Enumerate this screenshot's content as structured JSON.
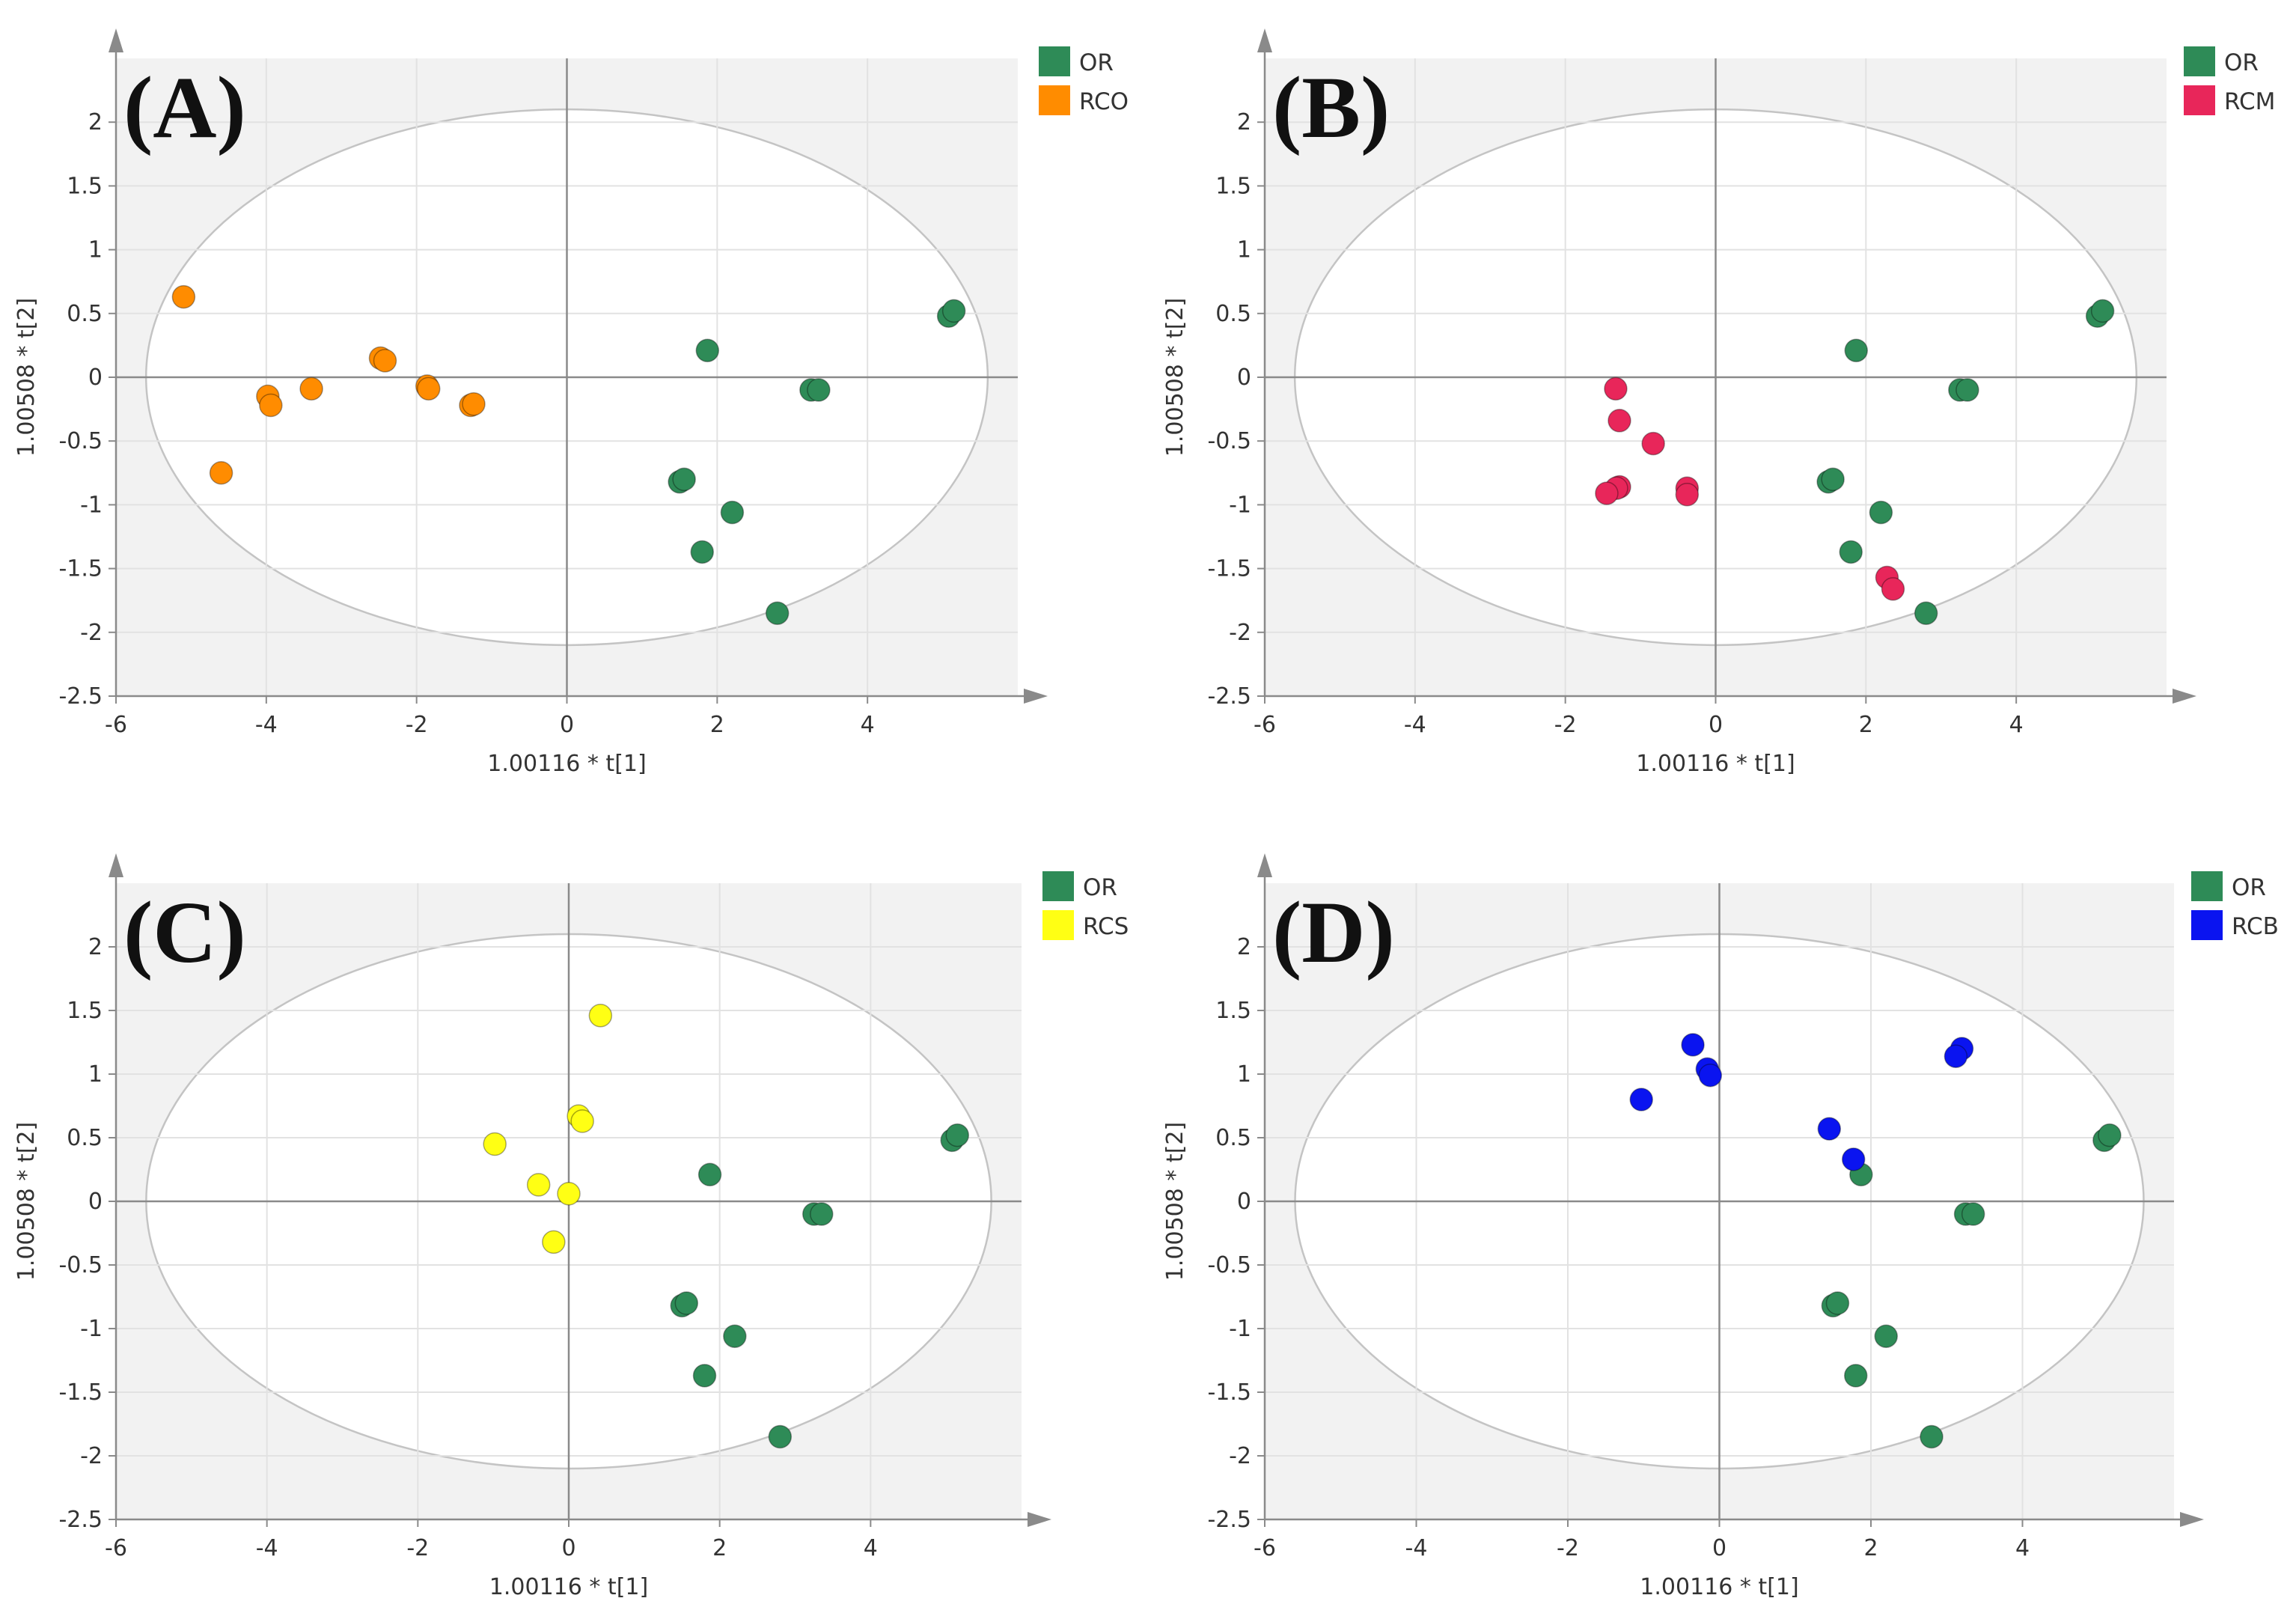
{
  "chart_data": [
    {
      "type": "scatter",
      "panel_label": "(A)",
      "xlabel": "1.00116 * t[1]",
      "ylabel": "1.00508 * t[2]",
      "xlim": [
        -6,
        6
      ],
      "ylim": [
        -2.5,
        2.5
      ],
      "xticks": [
        -6,
        -4,
        -2,
        0,
        2,
        4
      ],
      "yticks": [
        -2.5,
        -2,
        -1.5,
        -1,
        -0.5,
        0,
        0.5,
        1,
        1.5,
        2
      ],
      "ellipse": {
        "rx": 5.6,
        "ry": 2.1
      },
      "legend_position": "top-right",
      "series": [
        {
          "name": "OR",
          "color": "#2e8b57",
          "points": [
            [
              5.08,
              0.48
            ],
            [
              5.15,
              0.52
            ],
            [
              1.87,
              0.21
            ],
            [
              3.25,
              -0.1
            ],
            [
              3.35,
              -0.1
            ],
            [
              1.5,
              -0.82
            ],
            [
              1.56,
              -0.8
            ],
            [
              2.2,
              -1.06
            ],
            [
              1.8,
              -1.37
            ],
            [
              2.8,
              -1.85
            ]
          ]
        },
        {
          "name": "RCO",
          "color": "#ff8c00",
          "points": [
            [
              -5.1,
              0.63
            ],
            [
              -2.48,
              0.15
            ],
            [
              -2.42,
              0.13
            ],
            [
              -3.4,
              -0.09
            ],
            [
              -1.86,
              -0.07
            ],
            [
              -1.84,
              -0.09
            ],
            [
              -3.98,
              -0.15
            ],
            [
              -3.94,
              -0.22
            ],
            [
              -1.28,
              -0.22
            ],
            [
              -1.24,
              -0.21
            ],
            [
              -4.6,
              -0.75
            ]
          ]
        }
      ]
    },
    {
      "type": "scatter",
      "panel_label": "(B)",
      "xlabel": "1.00116 * t[1]",
      "ylabel": "1.00508 * t[2]",
      "xlim": [
        -6,
        6
      ],
      "ylim": [
        -2.5,
        2.5
      ],
      "xticks": [
        -6,
        -4,
        -2,
        0,
        2,
        4
      ],
      "yticks": [
        -2.5,
        -2,
        -1.5,
        -1,
        -0.5,
        0,
        0.5,
        1,
        1.5,
        2
      ],
      "ellipse": {
        "rx": 5.6,
        "ry": 2.1
      },
      "legend_position": "top-right",
      "series": [
        {
          "name": "OR",
          "color": "#2e8b57",
          "points": [
            [
              5.08,
              0.48
            ],
            [
              5.15,
              0.52
            ],
            [
              1.87,
              0.21
            ],
            [
              3.25,
              -0.1
            ],
            [
              3.35,
              -0.1
            ],
            [
              1.5,
              -0.82
            ],
            [
              1.56,
              -0.8
            ],
            [
              2.2,
              -1.06
            ],
            [
              1.8,
              -1.37
            ],
            [
              2.8,
              -1.85
            ]
          ]
        },
        {
          "name": "RCM",
          "color": "#e8265a",
          "points": [
            [
              -1.33,
              -0.09
            ],
            [
              -1.28,
              -0.34
            ],
            [
              -0.83,
              -0.52
            ],
            [
              -1.28,
              -0.86
            ],
            [
              -1.32,
              -0.87
            ],
            [
              -1.45,
              -0.91
            ],
            [
              -0.38,
              -0.87
            ],
            [
              -0.38,
              -0.92
            ],
            [
              2.28,
              -1.57
            ],
            [
              2.36,
              -1.66
            ]
          ]
        }
      ]
    },
    {
      "type": "scatter",
      "panel_label": "(C)",
      "xlabel": "1.00116 * t[1]",
      "ylabel": "1.00508 * t[2]",
      "xlim": [
        -6,
        6
      ],
      "ylim": [
        -2.5,
        2.5
      ],
      "xticks": [
        -6,
        -4,
        -2,
        0,
        2,
        4
      ],
      "yticks": [
        -2.5,
        -2,
        -1.5,
        -1,
        -0.5,
        0,
        0.5,
        1,
        1.5,
        2
      ],
      "ellipse": {
        "rx": 5.6,
        "ry": 2.1
      },
      "legend_position": "top-right",
      "series": [
        {
          "name": "OR",
          "color": "#2e8b57",
          "points": [
            [
              5.08,
              0.48
            ],
            [
              5.15,
              0.52
            ],
            [
              1.87,
              0.21
            ],
            [
              3.25,
              -0.1
            ],
            [
              3.35,
              -0.1
            ],
            [
              1.5,
              -0.82
            ],
            [
              1.56,
              -0.8
            ],
            [
              2.2,
              -1.06
            ],
            [
              1.8,
              -1.37
            ],
            [
              2.8,
              -1.85
            ]
          ]
        },
        {
          "name": "RCS",
          "color": "#ffff14",
          "points": [
            [
              0.42,
              1.46
            ],
            [
              0.13,
              0.67
            ],
            [
              0.18,
              0.63
            ],
            [
              -0.98,
              0.45
            ],
            [
              -0.4,
              0.13
            ],
            [
              0.0,
              0.06
            ],
            [
              -0.2,
              -0.32
            ]
          ]
        }
      ]
    },
    {
      "type": "scatter",
      "panel_label": "(D)",
      "xlabel": "1.00116 * t[1]",
      "ylabel": "1.00508 * t[2]",
      "xlim": [
        -6,
        6
      ],
      "ylim": [
        -2.5,
        2.5
      ],
      "xticks": [
        -6,
        -4,
        -2,
        0,
        2,
        4
      ],
      "yticks": [
        -2.5,
        -2,
        -1.5,
        -1,
        -0.5,
        0,
        0.5,
        1,
        1.5,
        2
      ],
      "ellipse": {
        "rx": 5.6,
        "ry": 2.1
      },
      "legend_position": "top-right",
      "series": [
        {
          "name": "OR",
          "color": "#2e8b57",
          "points": [
            [
              5.08,
              0.48
            ],
            [
              5.15,
              0.52
            ],
            [
              1.87,
              0.21
            ],
            [
              3.25,
              -0.1
            ],
            [
              3.35,
              -0.1
            ],
            [
              1.5,
              -0.82
            ],
            [
              1.56,
              -0.8
            ],
            [
              2.2,
              -1.06
            ],
            [
              1.8,
              -1.37
            ],
            [
              2.8,
              -1.85
            ]
          ]
        },
        {
          "name": "RCB",
          "color": "#0a14f0",
          "points": [
            [
              -0.35,
              1.23
            ],
            [
              -0.16,
              1.04
            ],
            [
              -0.12,
              0.99
            ],
            [
              -1.03,
              0.8
            ],
            [
              3.2,
              1.2
            ],
            [
              3.12,
              1.14
            ],
            [
              1.45,
              0.57
            ],
            [
              1.77,
              0.33
            ]
          ]
        }
      ]
    }
  ]
}
